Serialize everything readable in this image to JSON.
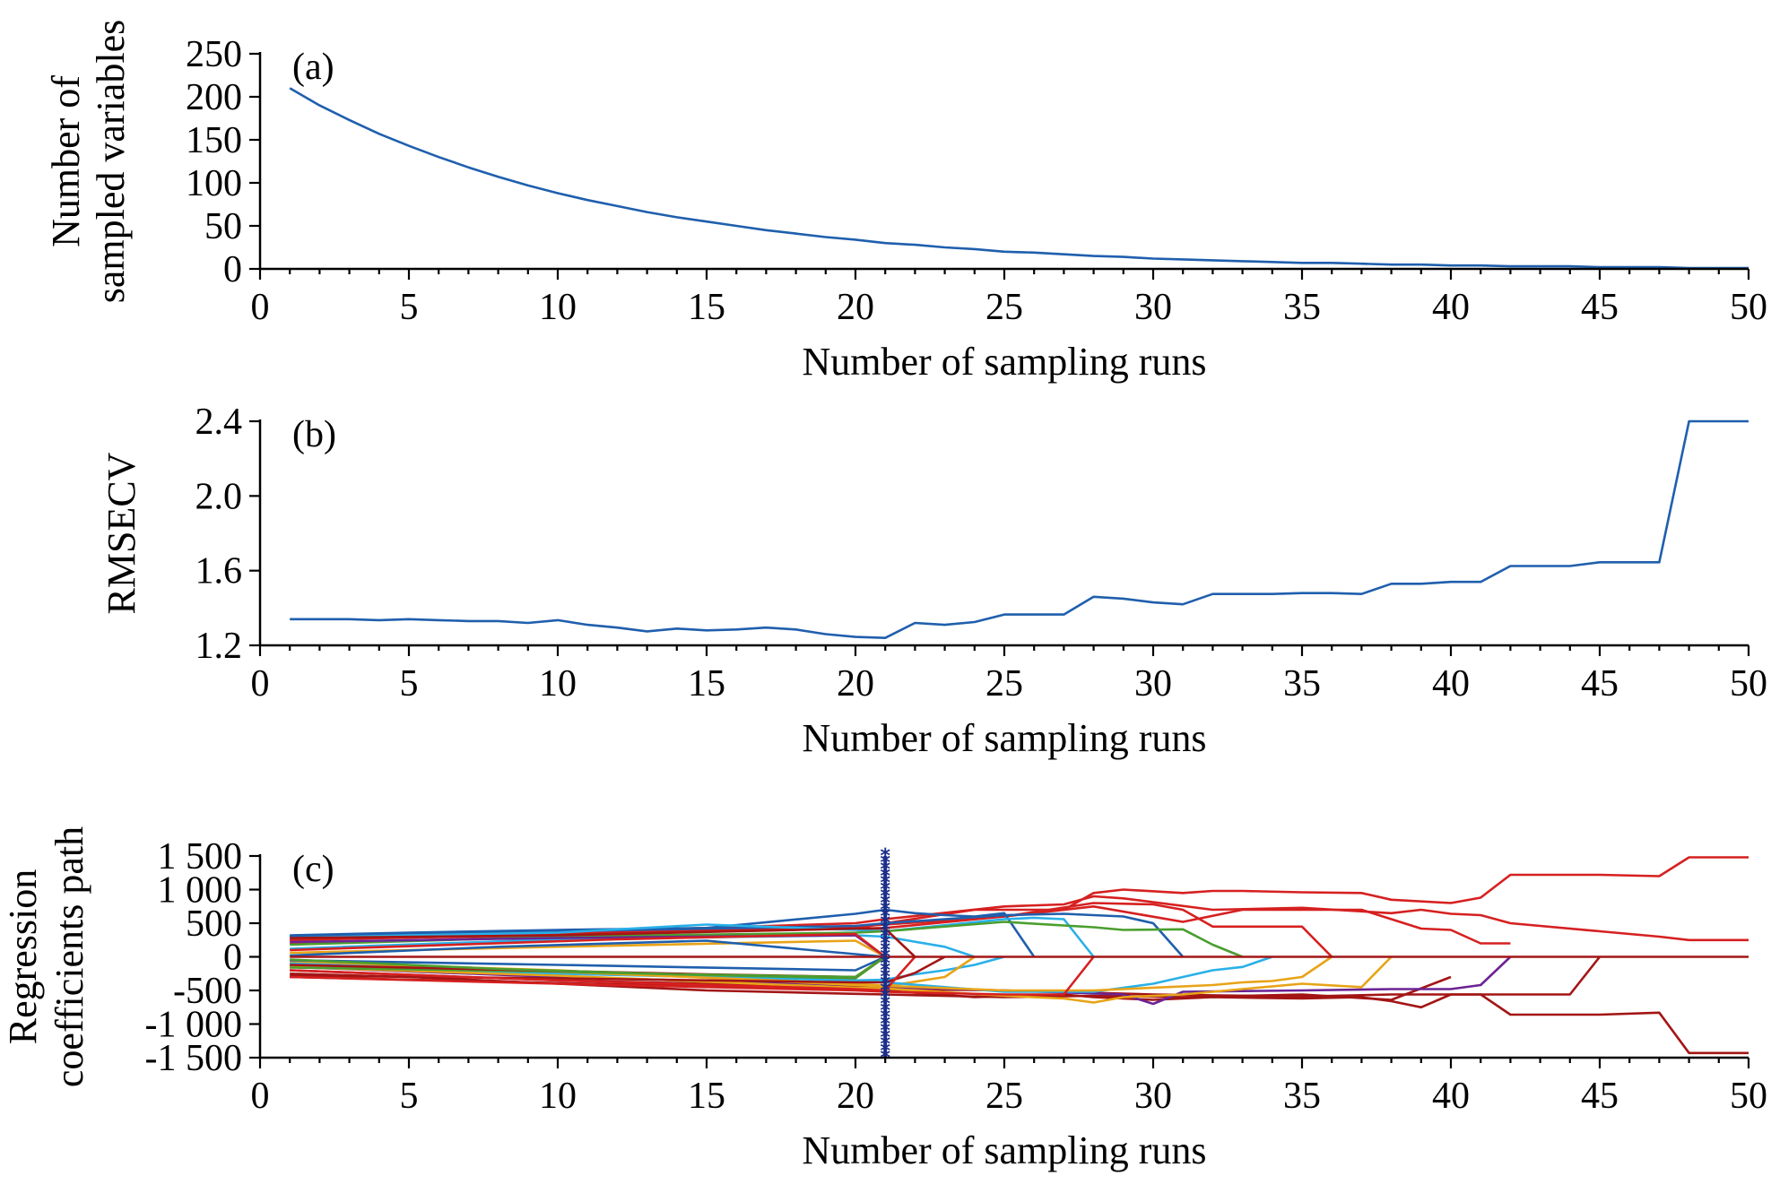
{
  "chart_data": [
    {
      "type": "line",
      "panel_label": "(a)",
      "xlabel": "Number of sampling runs",
      "ylabel_lines": [
        "Number of",
        "sampled variables"
      ],
      "xlim": [
        0,
        50
      ],
      "ylim": [
        0,
        250
      ],
      "xticks": [
        0,
        5,
        10,
        15,
        20,
        25,
        30,
        35,
        40,
        45,
        50
      ],
      "yticks": [
        0,
        50,
        100,
        150,
        200,
        250
      ],
      "ytick_labels": [
        "0",
        "50",
        "100",
        "150",
        "200",
        "250"
      ],
      "series": [
        {
          "color": "#1f5fad",
          "x": [
            1,
            2,
            3,
            4,
            5,
            6,
            7,
            8,
            9,
            10,
            11,
            12,
            13,
            14,
            15,
            16,
            17,
            18,
            19,
            20,
            21,
            22,
            23,
            24,
            25,
            26,
            27,
            28,
            29,
            30,
            31,
            32,
            33,
            34,
            35,
            36,
            37,
            38,
            39,
            40,
            41,
            42,
            43,
            44,
            45,
            46,
            47,
            48,
            49,
            50
          ],
          "y": [
            210,
            190,
            173,
            157,
            143,
            130,
            118,
            107,
            97,
            88,
            80,
            73,
            66,
            60,
            55,
            50,
            45,
            41,
            37,
            34,
            30,
            28,
            25,
            23,
            20,
            19,
            17,
            15,
            14,
            12,
            11,
            10,
            9,
            8,
            7,
            7,
            6,
            5,
            5,
            4,
            4,
            3,
            3,
            3,
            2,
            2,
            2,
            1,
            1,
            1
          ]
        }
      ]
    },
    {
      "type": "line",
      "panel_label": "(b)",
      "xlabel": "Number of sampling runs",
      "ylabel": "RMSECV",
      "xlim": [
        0,
        50
      ],
      "ylim": [
        1.2,
        2.4
      ],
      "xticks": [
        0,
        5,
        10,
        15,
        20,
        25,
        30,
        35,
        40,
        45,
        50
      ],
      "yticks": [
        1.2,
        1.6,
        2.0,
        2.4
      ],
      "ytick_labels": [
        "1.2",
        "1.6",
        "2.0",
        "2.4"
      ],
      "series": [
        {
          "color": "#1f5fad",
          "x": [
            1,
            2,
            3,
            4,
            5,
            6,
            7,
            8,
            9,
            10,
            11,
            12,
            13,
            14,
            15,
            16,
            17,
            18,
            19,
            20,
            21,
            22,
            23,
            24,
            25,
            26,
            27,
            28,
            29,
            30,
            31,
            32,
            33,
            34,
            35,
            36,
            37,
            38,
            39,
            40,
            41,
            42,
            43,
            44,
            45,
            46,
            47,
            48,
            49,
            50
          ],
          "y": [
            1.34,
            1.34,
            1.34,
            1.335,
            1.34,
            1.335,
            1.33,
            1.33,
            1.32,
            1.335,
            1.31,
            1.295,
            1.275,
            1.29,
            1.28,
            1.285,
            1.295,
            1.285,
            1.26,
            1.245,
            1.24,
            1.32,
            1.31,
            1.325,
            1.365,
            1.365,
            1.365,
            1.46,
            1.45,
            1.43,
            1.42,
            1.475,
            1.475,
            1.475,
            1.48,
            1.48,
            1.475,
            1.53,
            1.53,
            1.54,
            1.54,
            1.625,
            1.625,
            1.625,
            1.645,
            1.645,
            1.645,
            2.4,
            2.4,
            2.4
          ]
        }
      ]
    },
    {
      "type": "line",
      "panel_label": "(c)",
      "xlabel": "Number of sampling runs",
      "ylabel_lines": [
        "Regression",
        "coefficients path"
      ],
      "xlim": [
        0,
        50
      ],
      "ylim": [
        -1500,
        1500
      ],
      "xticks": [
        0,
        5,
        10,
        15,
        20,
        25,
        30,
        35,
        40,
        45,
        50
      ],
      "yticks": [
        -1500,
        -1000,
        -500,
        0,
        500,
        1000,
        1500
      ],
      "ytick_labels": [
        "-1 500",
        "-1 000",
        "-500",
        "0",
        "500",
        "1 000",
        "1 500"
      ],
      "marker_line": {
        "x": 21,
        "y_range": [
          -1500,
          1500
        ],
        "color": "#1a2e8a"
      },
      "series": [
        {
          "color": "#d62020",
          "x": [
            1,
            5,
            10,
            15,
            20,
            21,
            25,
            27,
            28,
            29,
            32,
            35,
            38,
            39,
            40,
            41,
            42,
            45,
            47,
            48,
            50
          ],
          "y": [
            300,
            320,
            380,
            430,
            500,
            560,
            750,
            780,
            900,
            870,
            700,
            730,
            650,
            700,
            640,
            620,
            500,
            380,
            300,
            250,
            250
          ]
        },
        {
          "color": "#d62020",
          "x": [
            1,
            20,
            21,
            24,
            27,
            28,
            29,
            31,
            32,
            33,
            35,
            37,
            38,
            40,
            41,
            42,
            45,
            47,
            48,
            50
          ],
          "y": [
            250,
            420,
            500,
            700,
            700,
            950,
            1000,
            950,
            980,
            980,
            960,
            950,
            850,
            800,
            880,
            1220,
            1220,
            1200,
            1480,
            1480
          ]
        },
        {
          "color": "#a31515",
          "x": [
            1,
            21,
            24,
            27,
            28,
            30,
            31,
            32,
            35,
            37,
            38,
            39,
            40,
            41,
            42,
            45,
            47,
            48,
            50
          ],
          "y": [
            -300,
            -500,
            -600,
            -560,
            -600,
            -640,
            -620,
            -600,
            -620,
            -600,
            -660,
            -750,
            -560,
            -560,
            -860,
            -860,
            -830,
            -1430,
            -1430
          ]
        },
        {
          "color": "#d62020",
          "x": [
            1,
            5,
            10,
            15,
            20,
            21,
            25,
            28,
            30,
            31,
            32,
            35,
            36
          ],
          "y": [
            250,
            300,
            350,
            400,
            450,
            480,
            600,
            800,
            780,
            700,
            450,
            450,
            0
          ]
        },
        {
          "color": "#a31515",
          "x": [
            1,
            5,
            10,
            15,
            20,
            21,
            25,
            28,
            31,
            32,
            35,
            38,
            40
          ],
          "y": [
            -250,
            -300,
            -400,
            -500,
            -550,
            -560,
            -600,
            -580,
            -600,
            -590,
            -560,
            -640,
            -300
          ]
        },
        {
          "color": "#d62020",
          "x": [
            1,
            10,
            15,
            20,
            21,
            25,
            28,
            31,
            33,
            34,
            35,
            37,
            38,
            39,
            40,
            41,
            42
          ],
          "y": [
            200,
            300,
            400,
            420,
            430,
            600,
            750,
            520,
            700,
            700,
            700,
            700,
            560,
            420,
            400,
            200,
            200
          ]
        },
        {
          "color": "#a31515",
          "x": [
            1,
            10,
            20,
            21,
            25,
            30,
            35,
            38,
            39,
            40,
            42,
            44,
            45
          ],
          "y": [
            -200,
            -350,
            -450,
            -480,
            -500,
            -560,
            -590,
            -560,
            -560,
            -560,
            -560,
            -560,
            0
          ]
        },
        {
          "color": "#6b2393",
          "x": [
            1,
            10,
            20,
            21,
            25,
            29,
            30,
            31,
            35,
            38,
            40,
            41,
            42
          ],
          "y": [
            -150,
            -300,
            -420,
            -450,
            -500,
            -560,
            -700,
            -520,
            -500,
            -480,
            -480,
            -420,
            0
          ]
        },
        {
          "color": "#1f5fad",
          "x": [
            1,
            5,
            10,
            15,
            20,
            21,
            22,
            23,
            24,
            25,
            26
          ],
          "y": [
            320,
            360,
            400,
            430,
            640,
            700,
            650,
            620,
            600,
            650,
            0
          ]
        },
        {
          "color": "#1f5fad",
          "x": [
            1,
            5,
            10,
            15,
            20,
            21,
            25,
            27,
            28,
            29,
            30,
            31
          ],
          "y": [
            300,
            340,
            380,
            420,
            460,
            500,
            620,
            640,
            620,
            600,
            500,
            0
          ]
        },
        {
          "color": "#29b0e8",
          "x": [
            1,
            5,
            10,
            15,
            20,
            21,
            25,
            26,
            27,
            28
          ],
          "y": [
            280,
            320,
            360,
            480,
            400,
            380,
            560,
            580,
            560,
            0
          ]
        },
        {
          "color": "#29b0e8",
          "x": [
            1,
            10,
            20,
            21,
            22,
            23,
            24,
            25
          ],
          "y": [
            -120,
            -250,
            -350,
            -340,
            -260,
            -200,
            -120,
            0
          ]
        },
        {
          "color": "#29b0e8",
          "x": [
            1,
            10,
            20,
            21,
            23,
            24
          ],
          "y": [
            120,
            260,
            320,
            300,
            150,
            0
          ]
        },
        {
          "color": "#4a9e2f",
          "x": [
            1,
            10,
            20,
            21,
            25,
            28,
            29,
            31,
            32,
            33
          ],
          "y": [
            180,
            300,
            360,
            380,
            520,
            440,
            400,
            410,
            180,
            0
          ]
        },
        {
          "color": "#e8a317",
          "x": [
            1,
            10,
            20,
            21,
            23,
            24
          ],
          "y": [
            -80,
            -200,
            -420,
            -440,
            -300,
            0
          ]
        },
        {
          "color": "#e8a317",
          "x": [
            1,
            10,
            20,
            21,
            25,
            27,
            28,
            29,
            30,
            31,
            35,
            37,
            38
          ],
          "y": [
            -150,
            -280,
            -460,
            -470,
            -580,
            -620,
            -680,
            -600,
            -580,
            -560,
            -400,
            -450,
            0
          ]
        },
        {
          "color": "#29b0e8",
          "x": [
            1,
            20,
            21,
            25,
            28,
            30,
            31,
            32,
            33,
            34
          ],
          "y": [
            -100,
            -350,
            -380,
            -520,
            -520,
            -400,
            -300,
            -200,
            -150,
            0
          ]
        },
        {
          "color": "#e8a317",
          "x": [
            1,
            20,
            21,
            25,
            28,
            32,
            33,
            34,
            35,
            36
          ],
          "y": [
            -60,
            -400,
            -430,
            -500,
            -500,
            -420,
            -380,
            -360,
            -300,
            0
          ]
        },
        {
          "color": "#a31515",
          "x": [
            1,
            10,
            20,
            21,
            22,
            23
          ],
          "y": [
            -280,
            -320,
            -380,
            -380,
            -240,
            0
          ]
        },
        {
          "color": "#a31515",
          "x": [
            1,
            10,
            20,
            21,
            22
          ],
          "y": [
            280,
            320,
            420,
            420,
            0
          ]
        },
        {
          "color": "#d62020",
          "x": [
            1,
            10,
            20,
            21,
            25,
            27,
            28
          ],
          "y": [
            -300,
            -400,
            -500,
            -520,
            -560,
            -560,
            0
          ]
        },
        {
          "color": "#d62020",
          "x": [
            1,
            10,
            20,
            21,
            22
          ],
          "y": [
            -200,
            -350,
            -480,
            -500,
            0
          ]
        },
        {
          "color": "#4a9e2f",
          "x": [
            1,
            10,
            20,
            21
          ],
          "y": [
            -160,
            -220,
            -320,
            0
          ]
        },
        {
          "color": "#1f5fad",
          "x": [
            1,
            10,
            20,
            21
          ],
          "y": [
            -50,
            -120,
            -200,
            0
          ]
        },
        {
          "color": "#e8a317",
          "x": [
            1,
            10,
            20,
            21
          ],
          "y": [
            60,
            150,
            240,
            0
          ]
        },
        {
          "color": "#6b2393",
          "x": [
            1,
            10,
            20,
            21
          ],
          "y": [
            220,
            280,
            320,
            0
          ]
        },
        {
          "color": "#a31515",
          "x": [
            1,
            15,
            20,
            21
          ],
          "y": [
            -120,
            -260,
            -300,
            0
          ]
        },
        {
          "color": "#d62020",
          "x": [
            1,
            12,
            16,
            20,
            21
          ],
          "y": [
            100,
            260,
            300,
            340,
            0
          ]
        },
        {
          "color": "#4a9e2f",
          "x": [
            1,
            8,
            14,
            20,
            21
          ],
          "y": [
            -40,
            -180,
            -260,
            -300,
            0
          ]
        },
        {
          "color": "#1f5fad",
          "x": [
            1,
            8,
            15,
            21
          ],
          "y": [
            20,
            150,
            240,
            0
          ]
        },
        {
          "color": "#a31515",
          "x": [
            1,
            50
          ],
          "y": [
            0,
            0
          ]
        }
      ]
    }
  ]
}
